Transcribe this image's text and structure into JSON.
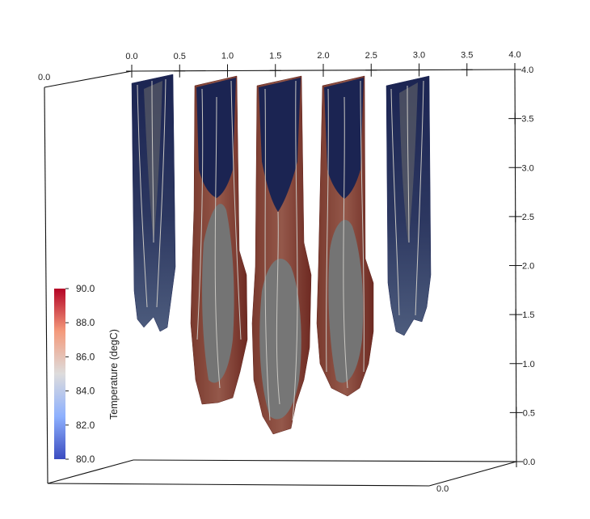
{
  "scene": {
    "top_axis_ticks": [
      "0.0",
      "0.5",
      "1.0",
      "1.5",
      "2.0",
      "2.5",
      "3.0",
      "3.5",
      "4.0"
    ],
    "right_axis_ticks": [
      "4.0",
      "3.5",
      "3.0",
      "2.5",
      "2.0",
      "1.5",
      "1.0",
      "0.5",
      "0.0"
    ],
    "corner_labels": {
      "back_left": "0.0",
      "front_bottom": "0.0"
    }
  },
  "colorbar": {
    "title": "Temperature (degC)",
    "labels": [
      "90.0",
      "88.0",
      "86.0",
      "84.0",
      "82.0",
      "80.0"
    ],
    "range": [
      80.0,
      90.0
    ],
    "colors": [
      "#b40426",
      "#f49a7b",
      "#dddcdc",
      "#8db0fe",
      "#3b4cc0"
    ]
  },
  "colors": {
    "cold_fill": "#1b2452",
    "warm_fill": "#8a4f3f",
    "core_gray": "#717171",
    "contour": "#c9c7c2"
  }
}
